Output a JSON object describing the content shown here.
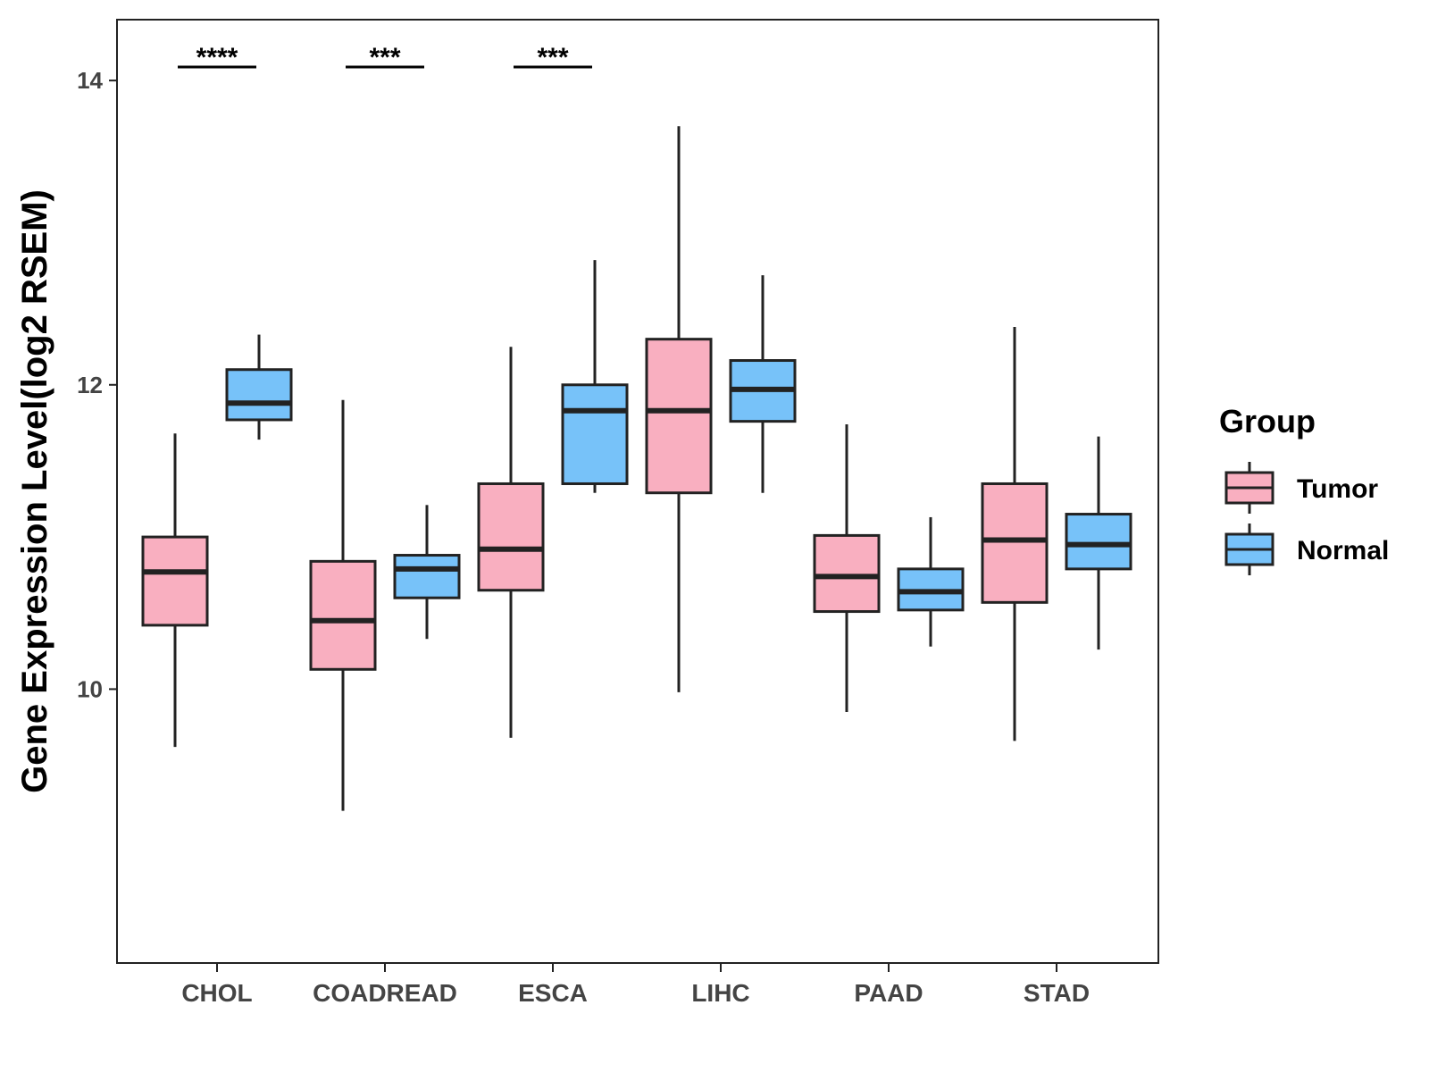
{
  "chart_data": {
    "type": "boxplot",
    "title": "",
    "xlabel": "",
    "ylabel": "Gene Expression Level(log2 RSEM)",
    "ylim": [
      8.2,
      14.4
    ],
    "yticks": [
      10,
      12,
      14
    ],
    "grid": false,
    "categories": [
      "CHOL",
      "COADREAD",
      "ESCA",
      "LIHC",
      "PAAD",
      "STAD"
    ],
    "legend": {
      "title": "Group",
      "placement": "right",
      "entries": [
        {
          "name": "Tumor",
          "color": "#F9AFC0"
        },
        {
          "name": "Normal",
          "color": "#77C2F9"
        }
      ]
    },
    "series": [
      {
        "name": "Tumor",
        "color": "#F9AFC0",
        "boxes": [
          {
            "min": 9.62,
            "q1": 10.42,
            "median": 10.77,
            "q3": 11.0,
            "max": 11.68
          },
          {
            "min": 9.2,
            "q1": 10.13,
            "median": 10.45,
            "q3": 10.84,
            "max": 11.9
          },
          {
            "min": 9.68,
            "q1": 10.65,
            "median": 10.92,
            "q3": 11.35,
            "max": 12.25
          },
          {
            "min": 9.98,
            "q1": 11.29,
            "median": 11.83,
            "q3": 12.3,
            "max": 13.7
          },
          {
            "min": 9.85,
            "q1": 10.51,
            "median": 10.74,
            "q3": 11.01,
            "max": 11.74
          },
          {
            "min": 9.66,
            "q1": 10.57,
            "median": 10.98,
            "q3": 11.35,
            "max": 12.38
          }
        ]
      },
      {
        "name": "Normal",
        "color": "#77C2F9",
        "boxes": [
          {
            "min": 11.64,
            "q1": 11.77,
            "median": 11.88,
            "q3": 12.1,
            "max": 12.33
          },
          {
            "min": 10.33,
            "q1": 10.6,
            "median": 10.79,
            "q3": 10.88,
            "max": 11.21
          },
          {
            "min": 11.29,
            "q1": 11.35,
            "median": 11.83,
            "q3": 12.0,
            "max": 12.82
          },
          {
            "min": 11.29,
            "q1": 11.76,
            "median": 11.97,
            "q3": 12.16,
            "max": 12.72
          },
          {
            "min": 10.28,
            "q1": 10.52,
            "median": 10.64,
            "q3": 10.79,
            "max": 11.13
          },
          {
            "min": 10.26,
            "q1": 10.79,
            "median": 10.95,
            "q3": 11.15,
            "max": 11.66
          }
        ]
      }
    ],
    "annotations": [
      {
        "category": "CHOL",
        "text": "****"
      },
      {
        "category": "COADREAD",
        "text": "***"
      },
      {
        "category": "ESCA",
        "text": "***"
      }
    ]
  }
}
